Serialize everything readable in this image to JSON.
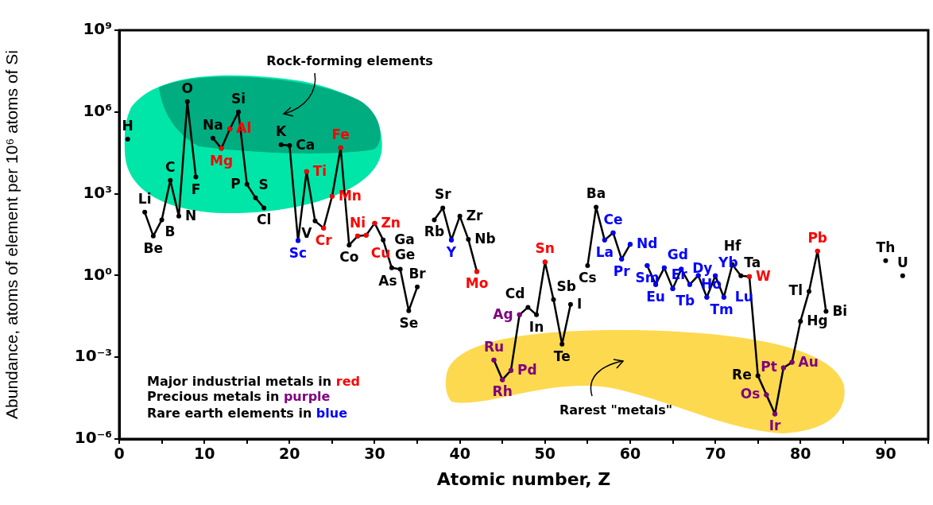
{
  "chart_data": {
    "type": "line",
    "xlabel": "Atomic number, Z",
    "ylabel": "Abundance, atoms of element per 10⁶ atoms of Si",
    "log": "y",
    "grid": false,
    "legend": false,
    "marker": "circle",
    "xlim": [
      0,
      95
    ],
    "xticks": [
      0,
      {
        "value": 5,
        "label": null
      },
      10,
      {
        "value": 15,
        "label": null
      },
      20,
      {
        "value": 25,
        "label": null
      },
      30,
      {
        "value": 35,
        "label": null
      },
      40,
      {
        "value": 45,
        "label": null
      },
      50,
      {
        "value": 55,
        "label": null
      },
      60,
      {
        "value": 65,
        "label": null
      },
      70,
      {
        "value": 75,
        "label": null
      },
      80,
      {
        "value": 85,
        "label": null
      },
      90,
      {
        "value": 95,
        "label": null
      }
    ],
    "ylim": [
      1e-06,
      1000000000
    ],
    "yticks": [
      {
        "value": 1e-06,
        "label": "10⁻⁶"
      },
      {
        "value": 0.001,
        "label": "10⁻³"
      },
      {
        "value": 1,
        "label": "10⁰"
      },
      {
        "value": 1000,
        "label": "10³"
      },
      {
        "value": 1000000,
        "label": "10⁶"
      },
      {
        "value": 1000000000,
        "label": "10⁹"
      }
    ],
    "series": [
      {
        "color": "#000000",
        "x": [
          1,
          2,
          3,
          4,
          5,
          6,
          7,
          8,
          9,
          10,
          11,
          12,
          13,
          14,
          15,
          16,
          17,
          18,
          19,
          20,
          21,
          22,
          23,
          24,
          25,
          26,
          27,
          28,
          29,
          30,
          31,
          32,
          33,
          34,
          35,
          36,
          37,
          38,
          39,
          40,
          41,
          42,
          43,
          44,
          45,
          46,
          47,
          48,
          49,
          50,
          51,
          52,
          53,
          54,
          55,
          56,
          57,
          58,
          59,
          60,
          61,
          62,
          63,
          64,
          65,
          66,
          67,
          68,
          69,
          70,
          71,
          72,
          73,
          74,
          75,
          76,
          77,
          78,
          79,
          80,
          81,
          82,
          83,
          84,
          85,
          86,
          87,
          88,
          89,
          90,
          91,
          92
        ],
        "values": [
          100000,
          null,
          210,
          28,
          110,
          3100,
          150,
          2400000,
          4100,
          null,
          110000,
          46000,
          240000,
          1000000,
          2200,
          710,
          300,
          null,
          63000,
          59000,
          19,
          6500,
          100,
          55,
          810,
          49000,
          13,
          28,
          30,
          83,
          20,
          1.9,
          1.7,
          0.051,
          0.38,
          null,
          110,
          300,
          20,
          150,
          21,
          1.4,
          null,
          0.00079,
          0.00015,
          0.00033,
          0.036,
          0.068,
          0.036,
          3.1,
          0.13,
          0.003,
          0.087,
          null,
          2.3,
          320,
          20,
          37,
          4.0,
          14,
          null,
          2.3,
          0.47,
          1.9,
          0.33,
          1.7,
          0.47,
          1.0,
          0.16,
          0.98,
          0.16,
          2.5,
          0.98,
          0.91,
          0.00021,
          4.2e-05,
          8.3e-06,
          0.00041,
          0.00065,
          0.021,
          0.26,
          7.9,
          0.048,
          null,
          null,
          null,
          null,
          null,
          null,
          3.5,
          null,
          0.98
        ],
        "value_labels": [
          "H",
          null,
          "Li",
          "Be",
          "B",
          "C",
          "N",
          "O",
          "F",
          null,
          "Na",
          null,
          null,
          "Si",
          "P",
          "S",
          "Cl",
          null,
          "K",
          "Ca",
          null,
          null,
          "V",
          null,
          null,
          null,
          "Co",
          null,
          null,
          null,
          "Ga",
          "Ge",
          "As",
          "Se",
          "Br",
          null,
          "Rb",
          "Sr",
          null,
          "Zr",
          "Nb",
          null,
          null,
          null,
          null,
          null,
          null,
          "Cd",
          "In",
          null,
          "Sb",
          "Te",
          "I",
          null,
          "Cs",
          "Ba",
          null,
          null,
          null,
          null,
          null,
          null,
          null,
          null,
          null,
          null,
          null,
          null,
          null,
          null,
          null,
          "Hf",
          "Ta",
          null,
          "Re",
          null,
          null,
          null,
          null,
          "Hg",
          "Tl",
          null,
          "Bi",
          null,
          null,
          null,
          null,
          null,
          null,
          "Th",
          null,
          "U"
        ]
      },
      {
        "type": "scatter",
        "color": "#ff0000",
        "x": [
          12,
          13,
          22,
          24,
          25,
          26,
          28,
          29,
          30,
          42,
          50,
          74,
          82
        ],
        "values": [
          46000,
          240000,
          6500,
          55,
          810,
          49000,
          28,
          30,
          83,
          1.4,
          3.1,
          0.91,
          7.9
        ],
        "value_labels": [
          "Mg",
          "Al",
          "Ti",
          "Cr",
          "Mn",
          "Fe",
          "Ni",
          "Cu",
          "Zn",
          "Mo",
          "Sn",
          "W",
          "Pb"
        ]
      },
      {
        "type": "scatter",
        "color": "#800080",
        "x": [
          44,
          45,
          46,
          47,
          76,
          77,
          78,
          79
        ],
        "values": [
          0.00079,
          0.00015,
          0.00033,
          0.036,
          4.2e-05,
          8.3e-06,
          0.00041,
          0.00065
        ],
        "value_labels": [
          "Ru",
          "Rh",
          "Pd",
          "Ag",
          "Os",
          "Ir",
          "Pt",
          "Au"
        ]
      },
      {
        "type": "scatter",
        "color": "#0000ff",
        "x": [
          21,
          39,
          57,
          58,
          59,
          60,
          62,
          63,
          64,
          65,
          66,
          67,
          68,
          69,
          70,
          71
        ],
        "values": [
          19,
          20,
          20,
          37,
          4.0,
          14,
          2.3,
          0.47,
          1.9,
          0.33,
          1.7,
          0.47,
          1.0,
          0.16,
          0.98,
          0.16
        ],
        "value_labels": [
          "Sc",
          "Y",
          "La",
          "Ce",
          "Pr",
          "Nd",
          "Sm",
          "Eu",
          "Gd",
          "Tb",
          "Dy",
          "Ho",
          "Er",
          "Tm",
          "Yb",
          "Lu"
        ]
      }
    ],
    "annotations": [
      "Rock-forming elements",
      "Rarest \"metals\"",
      "Major industrial metals in red",
      "Precious metals in purple",
      "Rare earth elements in blue"
    ]
  }
}
